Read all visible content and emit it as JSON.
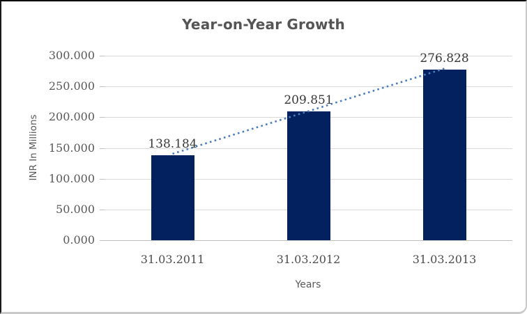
{
  "chart_data": {
    "type": "bar",
    "title": "Year-on-Year Growth",
    "categories": [
      "31.03.2011",
      "31.03.2012",
      "31.03.2013"
    ],
    "values": [
      138.184,
      209.851,
      276.828
    ],
    "value_labels": [
      "138.184",
      "209.851",
      "276.828"
    ],
    "xlabel": "Years",
    "ylabel": "INR In Millions",
    "ylim": [
      0,
      300
    ],
    "ytick_values": [
      0,
      50,
      100,
      150,
      200,
      250,
      300
    ],
    "ytick_labels": [
      "0.000",
      "50.000",
      "100.000",
      "150.000",
      "200.000",
      "250.000",
      "300.000"
    ],
    "grid": true,
    "legend_position": "none",
    "trendline": {
      "type": "linear",
      "style": "dotted",
      "color": "#4a7ebb"
    },
    "colors": {
      "bar": "#03215f",
      "gridline": "#d9d9d9",
      "axis_line": "#bfbfbf",
      "title_text": "#555555",
      "axis_title_text": "#595959",
      "tick_text": "#595959",
      "value_text": "#383838",
      "background": "#ffffff"
    }
  }
}
